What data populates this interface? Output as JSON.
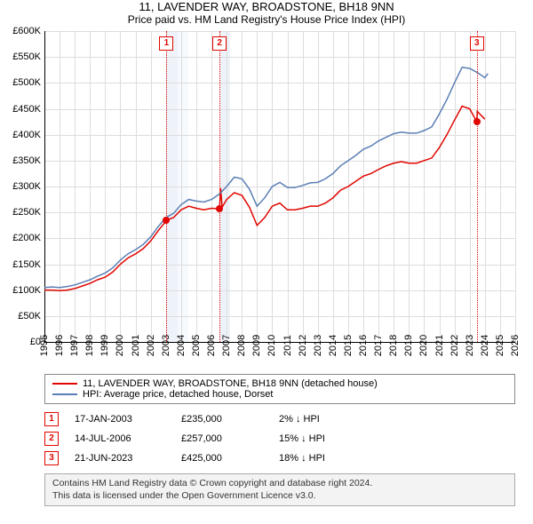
{
  "title_line1": "11, LAVENDER WAY, BROADSTONE, BH18 9NN",
  "title_line2": "Price paid vs. HM Land Registry's House Price Index (HPI)",
  "chart": {
    "type": "line",
    "background_color": "#ffffff",
    "grid_color": "#dddddd",
    "shade_color": "#eef3fa",
    "x": {
      "min": 1995,
      "max": 2026,
      "ticks": [
        1995,
        1996,
        1997,
        1998,
        1999,
        2000,
        2001,
        2002,
        2003,
        2004,
        2005,
        2006,
        2007,
        2008,
        2009,
        2010,
        2011,
        2012,
        2013,
        2014,
        2015,
        2016,
        2017,
        2018,
        2019,
        2020,
        2021,
        2022,
        2023,
        2024,
        2025,
        2026
      ]
    },
    "y": {
      "min": 0,
      "max": 600000,
      "tick_step": 50000,
      "tick_labels": [
        "£0",
        "£50K",
        "£100K",
        "£150K",
        "£200K",
        "£250K",
        "£300K",
        "£350K",
        "£400K",
        "£450K",
        "£500K",
        "£550K",
        "£600K"
      ]
    },
    "shaded_spans": [
      [
        2003.04,
        2003.75
      ],
      [
        2003.75,
        2004.5
      ],
      [
        2006.53,
        2007.2
      ]
    ],
    "series": [
      {
        "name": "11, LAVENDER WAY, BROADSTONE, BH18 9NN (detached house)",
        "color": "#e10600",
        "line_width": 1.5,
        "points": [
          [
            1995.0,
            100000
          ],
          [
            1995.5,
            100000
          ],
          [
            1996.0,
            99000
          ],
          [
            1996.5,
            100000
          ],
          [
            1997.0,
            103000
          ],
          [
            1997.5,
            108000
          ],
          [
            1998.0,
            113000
          ],
          [
            1998.5,
            120000
          ],
          [
            1999.0,
            125000
          ],
          [
            1999.5,
            135000
          ],
          [
            2000.0,
            150000
          ],
          [
            2000.5,
            162000
          ],
          [
            2001.0,
            170000
          ],
          [
            2001.5,
            180000
          ],
          [
            2002.0,
            195000
          ],
          [
            2002.5,
            215000
          ],
          [
            2003.0,
            233000
          ],
          [
            2003.04,
            235000
          ],
          [
            2003.5,
            240000
          ],
          [
            2004.0,
            255000
          ],
          [
            2004.5,
            262000
          ],
          [
            2005.0,
            258000
          ],
          [
            2005.5,
            255000
          ],
          [
            2006.0,
            258000
          ],
          [
            2006.53,
            257000
          ],
          [
            2006.6,
            297000
          ],
          [
            2006.7,
            260000
          ],
          [
            2007.0,
            275000
          ],
          [
            2007.5,
            288000
          ],
          [
            2008.0,
            283000
          ],
          [
            2008.5,
            260000
          ],
          [
            2009.0,
            225000
          ],
          [
            2009.5,
            240000
          ],
          [
            2010.0,
            262000
          ],
          [
            2010.5,
            268000
          ],
          [
            2011.0,
            255000
          ],
          [
            2011.5,
            255000
          ],
          [
            2012.0,
            258000
          ],
          [
            2012.5,
            262000
          ],
          [
            2013.0,
            262000
          ],
          [
            2013.5,
            268000
          ],
          [
            2014.0,
            278000
          ],
          [
            2014.5,
            293000
          ],
          [
            2015.0,
            300000
          ],
          [
            2015.5,
            310000
          ],
          [
            2016.0,
            320000
          ],
          [
            2016.5,
            325000
          ],
          [
            2017.0,
            333000
          ],
          [
            2017.5,
            340000
          ],
          [
            2018.0,
            345000
          ],
          [
            2018.5,
            348000
          ],
          [
            2019.0,
            345000
          ],
          [
            2019.5,
            345000
          ],
          [
            2020.0,
            350000
          ],
          [
            2020.5,
            355000
          ],
          [
            2021.0,
            375000
          ],
          [
            2021.5,
            400000
          ],
          [
            2022.0,
            428000
          ],
          [
            2022.5,
            455000
          ],
          [
            2023.0,
            450000
          ],
          [
            2023.47,
            425000
          ],
          [
            2023.5,
            445000
          ],
          [
            2024.0,
            430000
          ]
        ]
      },
      {
        "name": "HPI: Average price, detached house, Dorset",
        "color": "#5b7fb5",
        "line_width": 1.5,
        "points": [
          [
            1995.0,
            105000
          ],
          [
            1995.5,
            106000
          ],
          [
            1996.0,
            105000
          ],
          [
            1996.5,
            107000
          ],
          [
            1997.0,
            110000
          ],
          [
            1997.5,
            115000
          ],
          [
            1998.0,
            120000
          ],
          [
            1998.5,
            127000
          ],
          [
            1999.0,
            133000
          ],
          [
            1999.5,
            143000
          ],
          [
            2000.0,
            158000
          ],
          [
            2000.5,
            170000
          ],
          [
            2001.0,
            178000
          ],
          [
            2001.5,
            188000
          ],
          [
            2002.0,
            203000
          ],
          [
            2002.5,
            223000
          ],
          [
            2003.0,
            240000
          ],
          [
            2003.5,
            248000
          ],
          [
            2004.0,
            265000
          ],
          [
            2004.5,
            275000
          ],
          [
            2005.0,
            272000
          ],
          [
            2005.5,
            270000
          ],
          [
            2006.0,
            275000
          ],
          [
            2006.5,
            285000
          ],
          [
            2007.0,
            300000
          ],
          [
            2007.5,
            318000
          ],
          [
            2008.0,
            315000
          ],
          [
            2008.5,
            295000
          ],
          [
            2009.0,
            262000
          ],
          [
            2009.5,
            278000
          ],
          [
            2010.0,
            300000
          ],
          [
            2010.5,
            308000
          ],
          [
            2011.0,
            298000
          ],
          [
            2011.5,
            298000
          ],
          [
            2012.0,
            302000
          ],
          [
            2012.5,
            307000
          ],
          [
            2013.0,
            308000
          ],
          [
            2013.5,
            315000
          ],
          [
            2014.0,
            325000
          ],
          [
            2014.5,
            340000
          ],
          [
            2015.0,
            350000
          ],
          [
            2015.5,
            360000
          ],
          [
            2016.0,
            372000
          ],
          [
            2016.5,
            378000
          ],
          [
            2017.0,
            388000
          ],
          [
            2017.5,
            395000
          ],
          [
            2018.0,
            402000
          ],
          [
            2018.5,
            405000
          ],
          [
            2019.0,
            403000
          ],
          [
            2019.5,
            403000
          ],
          [
            2020.0,
            408000
          ],
          [
            2020.5,
            415000
          ],
          [
            2021.0,
            440000
          ],
          [
            2021.5,
            468000
          ],
          [
            2022.0,
            500000
          ],
          [
            2022.5,
            530000
          ],
          [
            2023.0,
            528000
          ],
          [
            2023.5,
            520000
          ],
          [
            2024.0,
            510000
          ],
          [
            2024.2,
            518000
          ]
        ]
      }
    ],
    "markers": [
      {
        "n": "1",
        "year": 2003.04,
        "price": 235000
      },
      {
        "n": "2",
        "year": 2006.53,
        "price": 257000
      },
      {
        "n": "3",
        "year": 2023.47,
        "price": 425000
      }
    ]
  },
  "legend": {
    "items": [
      {
        "color": "#e10600",
        "label": "11, LAVENDER WAY, BROADSTONE, BH18 9NN (detached house)"
      },
      {
        "color": "#5b7fb5",
        "label": "HPI: Average price, detached house, Dorset"
      }
    ]
  },
  "sales": [
    {
      "n": "1",
      "date": "17-JAN-2003",
      "price": "£235,000",
      "delta": "2% ↓ HPI"
    },
    {
      "n": "2",
      "date": "14-JUL-2006",
      "price": "£257,000",
      "delta": "15% ↓ HPI"
    },
    {
      "n": "3",
      "date": "21-JUN-2023",
      "price": "£425,000",
      "delta": "18% ↓ HPI"
    }
  ],
  "attribution": {
    "line1": "Contains HM Land Registry data © Crown copyright and database right 2024.",
    "line2": "This data is licensed under the Open Government Licence v3.0."
  }
}
